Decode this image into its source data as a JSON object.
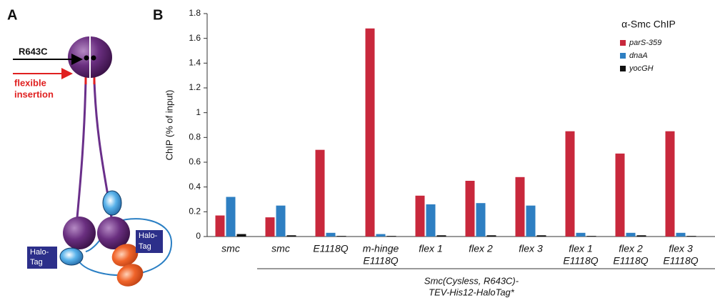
{
  "panel_labels": [
    "A",
    "B"
  ],
  "panel_a": {
    "arrow_label": "R643C",
    "insertion_label": [
      "flexible",
      "insertion"
    ],
    "tag_labels": [
      [
        "Halo-",
        "Tag"
      ],
      [
        "Halo-",
        "Tag"
      ]
    ]
  },
  "chart_data": {
    "type": "bar",
    "y_label": "ChIP (% of input)",
    "legend_title": "α-Smc ChIP",
    "categories": [
      [
        "smc"
      ],
      [
        "smc"
      ],
      [
        "E1118Q"
      ],
      [
        "m-hinge",
        "E1118Q"
      ],
      [
        "flex 1"
      ],
      [
        "flex 2"
      ],
      [
        "flex 3"
      ],
      [
        "flex 1",
        "E1118Q"
      ],
      [
        "flex 2",
        "E1118Q"
      ],
      [
        "flex 3",
        "E1118Q"
      ]
    ],
    "series": [
      {
        "name": "parS-359",
        "color": "#c8283c",
        "values": [
          0.17,
          0.155,
          0.7,
          1.68,
          0.33,
          0.45,
          0.48,
          0.85,
          0.67,
          0.85
        ]
      },
      {
        "name": "dnaA",
        "color": "#2e7fc2",
        "values": [
          0.32,
          0.25,
          0.03,
          0.02,
          0.26,
          0.27,
          0.25,
          0.03,
          0.03,
          0.03
        ]
      },
      {
        "name": "yocGH",
        "color": "#111111",
        "values": [
          0.02,
          0.01,
          0.005,
          0.005,
          0.01,
          0.01,
          0.01,
          0.005,
          0.01,
          0.005
        ]
      }
    ],
    "ylim": [
      0,
      1.8
    ],
    "yticks": [
      0,
      0.2,
      0.4,
      0.6,
      0.8,
      1,
      1.2,
      1.4,
      1.6,
      1.8
    ],
    "group_label": [
      "Smc(Cysless, R643C)-",
      "TEV-His12-HaloTag*"
    ]
  }
}
